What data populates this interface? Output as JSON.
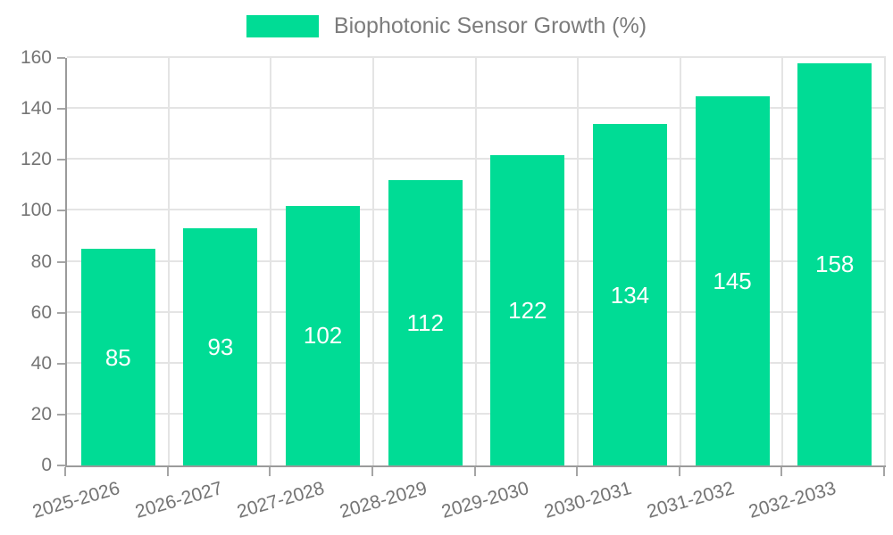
{
  "chart_data": {
    "type": "bar",
    "title": "Biophotonic Sensor Growth (%)",
    "legend": {
      "label": "Biophotonic Sensor Growth (%)",
      "position": "top-center"
    },
    "categories": [
      "2025-2026",
      "2026-2027",
      "2027-2028",
      "2028-2029",
      "2029-2030",
      "2030-2031",
      "2031-2032",
      "2032-2033"
    ],
    "series": [
      {
        "name": "Biophotonic Sensor Growth (%)",
        "values": [
          85,
          93,
          102,
          112,
          122,
          134,
          145,
          158
        ]
      }
    ],
    "value_labels": [
      "85",
      "93",
      "102",
      "112",
      "122",
      "134",
      "145",
      "158"
    ],
    "xlabel": "",
    "ylabel": "",
    "ylim": [
      0,
      160
    ],
    "yticks": [
      0,
      20,
      40,
      60,
      80,
      100,
      120,
      140,
      160
    ],
    "grid": "on",
    "colors": {
      "bar": "#00DC95",
      "bar_label_text": "#ffffff",
      "axis_line": "#9b9b9b",
      "gridline": "#e4e4e4",
      "tick_text": "#757575",
      "legend_text": "#7c7c7c",
      "background": "#ffffff"
    }
  }
}
